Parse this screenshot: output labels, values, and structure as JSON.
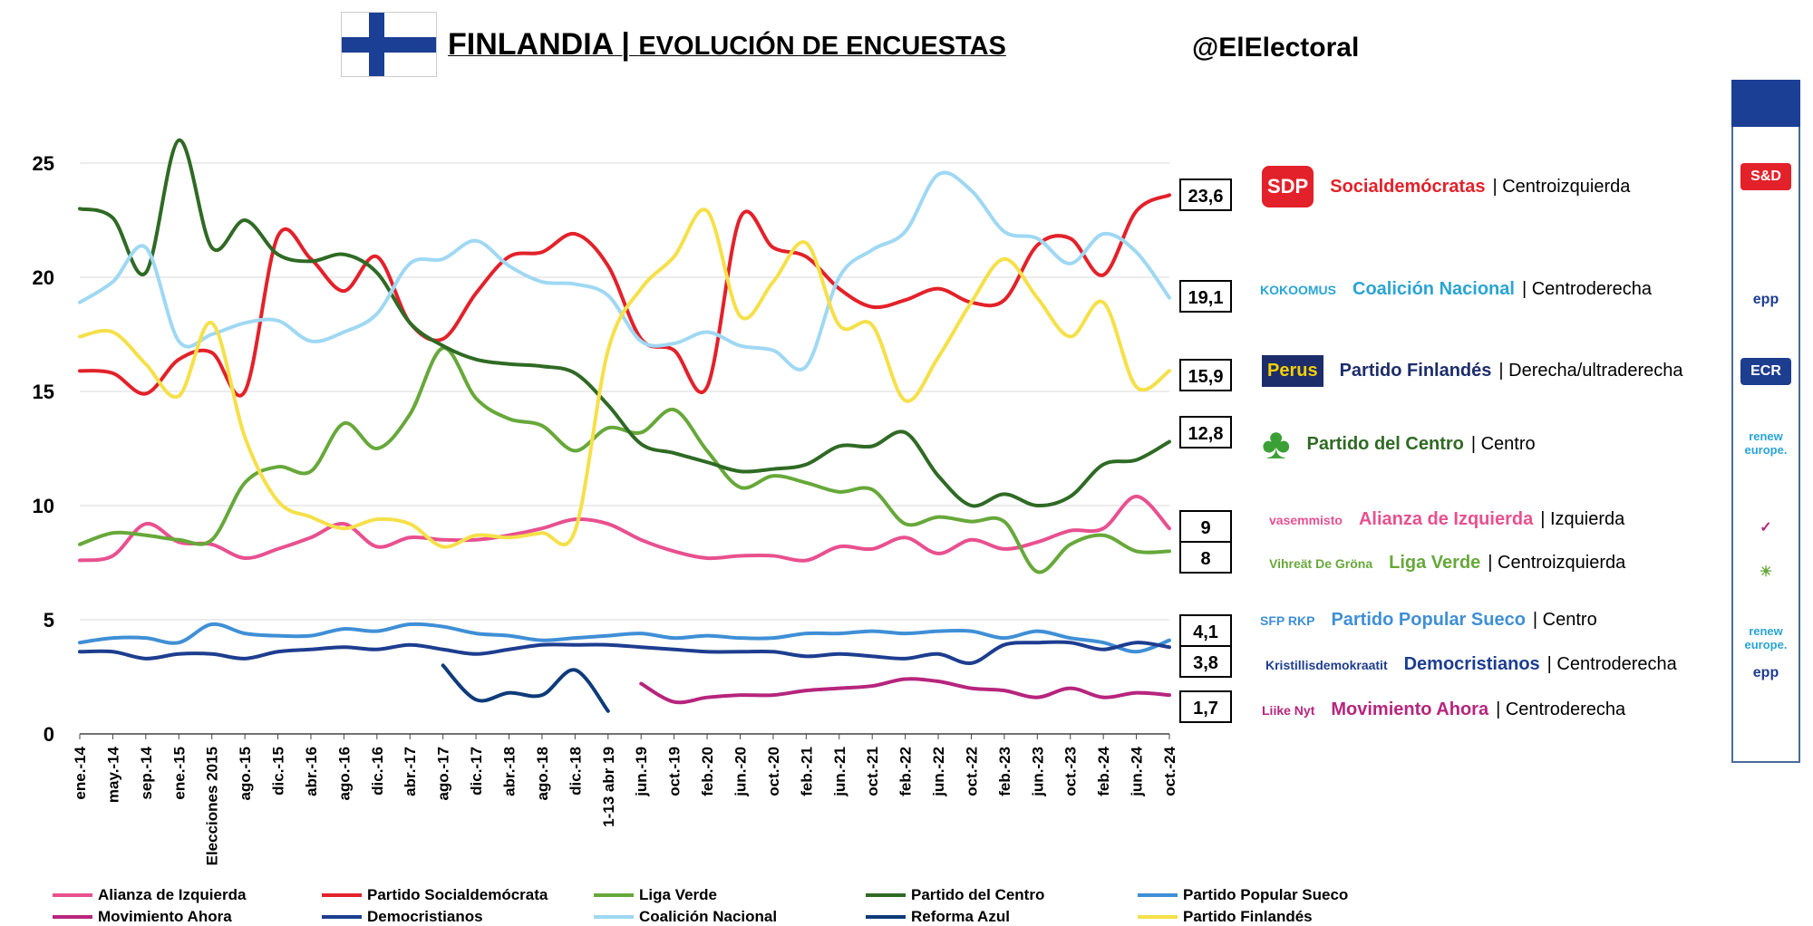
{
  "header": {
    "title_main": "FINLANDIA | ",
    "title_sub": "EVOLUCIÓN DE ENCUESTAS",
    "handle": "@ElElectoral"
  },
  "parties": [
    {
      "name": "Socialdemócratas",
      "ideology": "| Centroizquierda",
      "color": "#e3212a",
      "logo_text": "SDP",
      "group": "S&D"
    },
    {
      "name": "Coalición Nacional",
      "ideology": "| Centroderecha",
      "color": "#2aa4d4",
      "logo_text": "KOKOOMUS",
      "group": "epp"
    },
    {
      "name": "Partido Finlandés",
      "ideology": "| Derecha/ultraderecha",
      "color": "#1d2d6b",
      "logo_text": "Perus",
      "group": "ECR"
    },
    {
      "name": "Partido del Centro",
      "ideology": "| Centro",
      "color": "#2f6a24",
      "logo_text": "",
      "group": "renew europe."
    },
    {
      "name": "Alianza de Izquierda",
      "ideology": "| Izquierda",
      "color": "#e8508f",
      "logo_text": "vasemmisto",
      "group": ""
    },
    {
      "name": "Liga Verde",
      "ideology": "| Centroizquierda",
      "color": "#67a83a",
      "logo_text": "Vihreät De Gröna",
      "group": ""
    },
    {
      "name": "Partido Popular Sueco",
      "ideology": "| Centro",
      "color": "#3f8fd6",
      "logo_text": "SFP RKP",
      "group": "renew europe."
    },
    {
      "name": "Democristianos",
      "ideology": "| Centroderecha",
      "color": "#1d3d8f",
      "logo_text": "Kristillisdemokraatit",
      "group": ""
    },
    {
      "name": "Movimiento Ahora",
      "ideology": "| Centroderecha",
      "color": "#b6257d",
      "logo_text": "Liike Nyt",
      "group": "epp"
    }
  ],
  "chart_data": {
    "type": "line",
    "ylim": [
      0,
      25
    ],
    "yticks": [
      "0",
      "5",
      "10",
      "15",
      "20",
      "25"
    ],
    "xlabels": [
      "ene.-14",
      "may.-14",
      "sep.-14",
      "ene.-15",
      "Elecciones 2015",
      "ago.-15",
      "dic.-15",
      "abr.-16",
      "ago.-16",
      "dic.-16",
      "abr.-17",
      "ago.-17",
      "dic.-17",
      "abr.-18",
      "ago.-18",
      "dic.-18",
      "1-13 abr 19",
      "jun.-19",
      "oct.-19",
      "feb.-20",
      "jun.-20",
      "oct.-20",
      "feb.-21",
      "jun.-21",
      "oct.-21",
      "feb.-22",
      "jun.-22",
      "oct.-22",
      "feb.-23",
      "jun.-23",
      "oct.-23",
      "feb.-24",
      "jun.-24",
      "oct.-24"
    ],
    "final_labels": [
      "23,6",
      "19,1",
      "15,9",
      "12,8",
      "9",
      "8",
      "4,1",
      "3,8",
      "1,7"
    ],
    "series": [
      {
        "name": "Alianza de Izquierda",
        "color": "#e8508f",
        "values": [
          7.6,
          7.8,
          9.2,
          8.4,
          8.3,
          7.7,
          8.1,
          8.6,
          9.2,
          8.2,
          8.6,
          8.5,
          8.5,
          8.7,
          9.0,
          9.4,
          9.2,
          8.5,
          8.0,
          7.7,
          7.8,
          7.8,
          7.6,
          8.2,
          8.1,
          8.6,
          7.9,
          8.5,
          8.1,
          8.4,
          8.9,
          9.0,
          10.4,
          9.0
        ]
      },
      {
        "name": "Partido Socialdemócrata",
        "color": "#e3212a",
        "values": [
          15.9,
          15.8,
          14.9,
          16.4,
          16.7,
          15.0,
          21.8,
          20.8,
          19.4,
          20.9,
          18.0,
          17.3,
          19.3,
          20.9,
          21.1,
          21.9,
          20.5,
          17.3,
          16.8,
          15.2,
          22.6,
          21.3,
          20.9,
          19.5,
          18.7,
          19.0,
          19.5,
          18.9,
          19.0,
          21.4,
          21.7,
          20.1,
          22.9,
          23.6
        ]
      },
      {
        "name": "Liga Verde",
        "color": "#67a83a",
        "values": [
          8.3,
          8.8,
          8.7,
          8.5,
          8.5,
          11.0,
          11.7,
          11.5,
          13.6,
          12.5,
          14.0,
          16.9,
          14.7,
          13.8,
          13.5,
          12.4,
          13.4,
          13.2,
          14.2,
          12.4,
          10.8,
          11.3,
          11.0,
          10.6,
          10.7,
          9.2,
          9.5,
          9.3,
          9.3,
          7.1,
          8.3,
          8.7,
          8.0,
          8.0
        ]
      },
      {
        "name": "Partido del Centro",
        "color": "#2f6a24",
        "values": [
          23.0,
          22.6,
          20.2,
          26.0,
          21.3,
          22.5,
          21.0,
          20.7,
          21.0,
          20.2,
          18.0,
          17.0,
          16.4,
          16.2,
          16.1,
          15.8,
          14.4,
          12.7,
          12.3,
          11.9,
          11.5,
          11.6,
          11.8,
          12.6,
          12.6,
          13.2,
          11.3,
          10.0,
          10.5,
          10.0,
          10.4,
          11.8,
          12.0,
          12.8
        ]
      },
      {
        "name": "Partido Popular Sueco",
        "color": "#3f8fd6",
        "values": [
          4.0,
          4.2,
          4.2,
          4.0,
          4.8,
          4.4,
          4.3,
          4.3,
          4.6,
          4.5,
          4.8,
          4.7,
          4.4,
          4.3,
          4.1,
          4.2,
          4.3,
          4.4,
          4.2,
          4.3,
          4.2,
          4.2,
          4.4,
          4.4,
          4.5,
          4.4,
          4.5,
          4.5,
          4.2,
          4.5,
          4.2,
          4.0,
          3.6,
          4.1
        ]
      },
      {
        "name": "Movimiento Ahora",
        "color": "#b6257d",
        "values": [
          null,
          null,
          null,
          null,
          null,
          null,
          null,
          null,
          null,
          null,
          null,
          null,
          null,
          null,
          null,
          null,
          null,
          2.2,
          1.4,
          1.6,
          1.7,
          1.7,
          1.9,
          2.0,
          2.1,
          2.4,
          2.3,
          2.0,
          1.9,
          1.6,
          2.0,
          1.6,
          1.8,
          1.7
        ]
      },
      {
        "name": "Democristianos",
        "color": "#1d3d8f",
        "values": [
          3.6,
          3.6,
          3.3,
          3.5,
          3.5,
          3.3,
          3.6,
          3.7,
          3.8,
          3.7,
          3.9,
          3.7,
          3.5,
          3.7,
          3.9,
          3.9,
          3.9,
          3.8,
          3.7,
          3.6,
          3.6,
          3.6,
          3.4,
          3.5,
          3.4,
          3.3,
          3.5,
          3.1,
          3.9,
          4.0,
          4.0,
          3.7,
          4.0,
          3.8
        ]
      },
      {
        "name": "Coalición Nacional",
        "color": "#9fd8f3",
        "values": [
          18.9,
          19.8,
          21.3,
          17.2,
          17.5,
          18.0,
          18.1,
          17.2,
          17.6,
          18.4,
          20.6,
          20.8,
          21.6,
          20.5,
          19.8,
          19.7,
          19.2,
          17.2,
          17.1,
          17.6,
          17.0,
          16.8,
          16.1,
          20.0,
          21.2,
          22.0,
          24.5,
          23.8,
          22.0,
          21.7,
          20.6,
          21.9,
          21.1,
          19.1
        ]
      },
      {
        "name": "Reforma Azul",
        "color": "#0d3b7a",
        "values": [
          null,
          null,
          null,
          null,
          null,
          null,
          null,
          null,
          null,
          null,
          null,
          3.0,
          1.5,
          1.8,
          1.7,
          2.8,
          1.0,
          null,
          null,
          null,
          null,
          null,
          null,
          null,
          null,
          null,
          null,
          null,
          null,
          null,
          null,
          null,
          null,
          null
        ]
      },
      {
        "name": "Partido Finlandés",
        "color": "#f5e049",
        "values": [
          17.4,
          17.6,
          16.2,
          14.8,
          18.0,
          13.0,
          10.2,
          9.5,
          9.0,
          9.4,
          9.2,
          8.2,
          8.7,
          8.6,
          8.8,
          8.9,
          16.8,
          19.5,
          20.9,
          22.9,
          18.3,
          19.8,
          21.5,
          17.9,
          17.9,
          14.6,
          16.5,
          18.9,
          20.8,
          19.1,
          17.4,
          18.9,
          15.2,
          15.9
        ]
      }
    ]
  },
  "legend": [
    {
      "name": "Alianza de Izquierda",
      "color": "#e8508f"
    },
    {
      "name": "Partido Socialdemócrata",
      "color": "#e3212a"
    },
    {
      "name": "Liga Verde",
      "color": "#67a83a"
    },
    {
      "name": "Partido del Centro",
      "color": "#2f6a24"
    },
    {
      "name": "Partido Popular Sueco",
      "color": "#3f8fd6"
    },
    {
      "name": "Movimiento Ahora",
      "color": "#b6257d"
    },
    {
      "name": "Democristianos",
      "color": "#1d3d8f"
    },
    {
      "name": "Coalición Nacional",
      "color": "#9fd8f3"
    },
    {
      "name": "Reforma Azul",
      "color": "#0d3b7a"
    },
    {
      "name": "Partido Finlandés",
      "color": "#f5e049"
    }
  ]
}
